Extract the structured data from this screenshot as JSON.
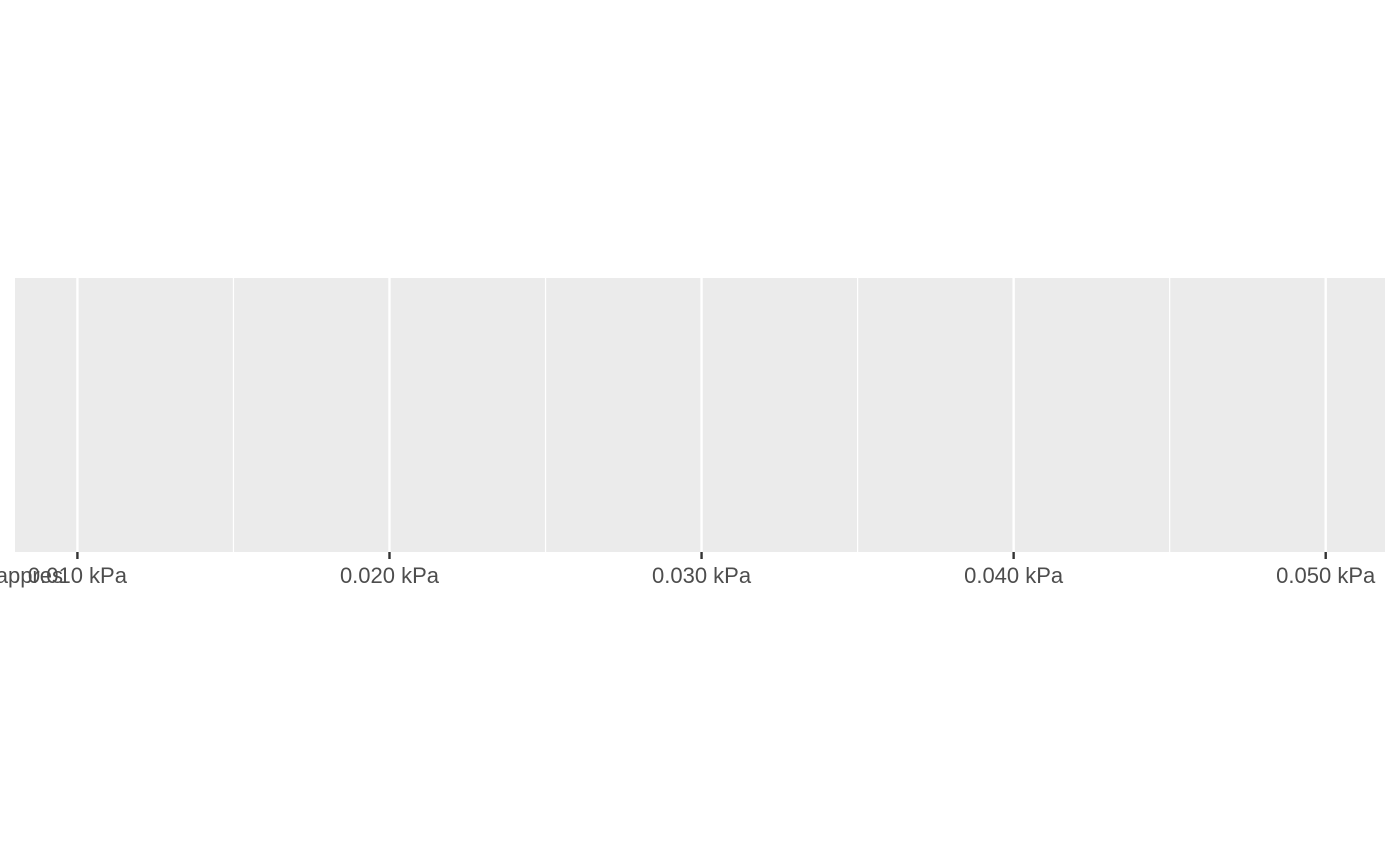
{
  "chart_data": {
    "type": "scatter",
    "title": "",
    "xlabel": "",
    "ylabel": "",
    "x_unit": "kPa",
    "xlim": [
      0.008,
      0.0519
    ],
    "x_ticks": [
      0.01,
      0.02,
      0.03,
      0.04,
      0.05
    ],
    "x_tick_labels": [
      "0.010 kPa",
      "0.020 kPa",
      "0.030 kPa",
      "0.040 kPa",
      "0.050 kPa"
    ],
    "clipped_left_label": "appres",
    "x_minor_gridlines": [
      0.015,
      0.025,
      0.035,
      0.045
    ],
    "series": [],
    "grid": true,
    "legend": "none",
    "panel_background": "#ebebeb",
    "gridline_color": "#ffffff",
    "text_color": "#4d4d4d",
    "tick_color": "#333333"
  }
}
